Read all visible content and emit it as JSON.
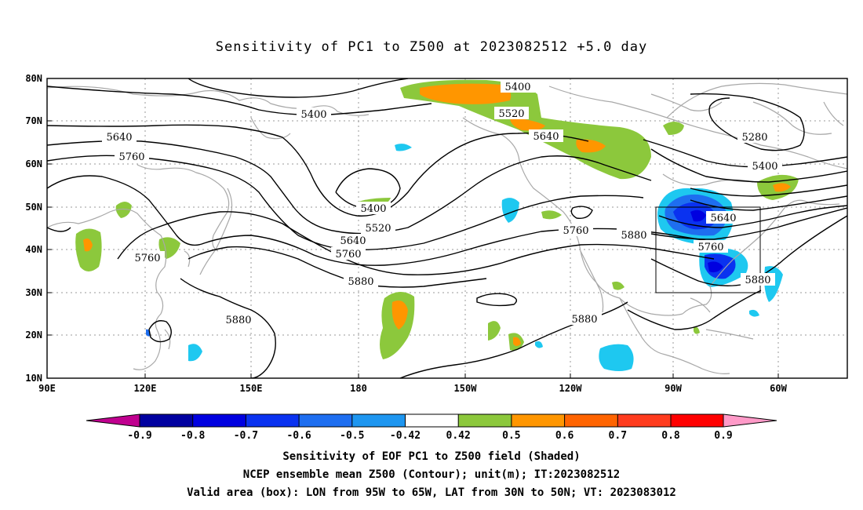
{
  "title": "Sensitivity of PC1 to Z500 at 2023082512 +5.0 day",
  "lat_ticks": [
    "80N",
    "70N",
    "60N",
    "50N",
    "40N",
    "30N",
    "20N",
    "10N"
  ],
  "lon_ticks": [
    "90E",
    "120E",
    "150E",
    "180",
    "150W",
    "120W",
    "90W",
    "60W"
  ],
  "contour_labels": {
    "c5400a": "5400",
    "c5400b": "5400",
    "c5400c": "5400",
    "c5400d": "5400",
    "c5280": "5280",
    "c5520a": "5520",
    "c5520b": "5520",
    "c5640a": "5640",
    "c5640b": "5640",
    "c5640c": "5640",
    "c5640d": "5640",
    "c5760a": "5760",
    "c5760b": "5760",
    "c5760c": "5760",
    "c5760d": "5760",
    "c5760e": "5760",
    "c5880a": "5880",
    "c5880b": "5880",
    "c5880c": "5880",
    "c5880d": "5880",
    "c5880e": "5880"
  },
  "colorbar": {
    "labels": [
      "-0.9",
      "-0.8",
      "-0.7",
      "-0.6",
      "-0.5",
      "-0.42",
      "0.42",
      "0.5",
      "0.6",
      "0.7",
      "0.8",
      "0.9"
    ],
    "colors": {
      "lt_m09": "#c0008f",
      "m09": "#0000a0",
      "m08": "#0000e0",
      "m07": "#0a32f0",
      "m06": "#1e6ef0",
      "m05": "#1e96f0",
      "m042": "#1ec8f0",
      "white": "#ffffff",
      "p042": "#8cc83c",
      "p05": "#ff9600",
      "p06": "#ff6400",
      "p07": "#ff3c1e",
      "p08": "#ff0000",
      "gt_p09": "#ff9ac8"
    }
  },
  "footer": {
    "line1": "Sensitivity of EOF PC1 to Z500 field (Shaded)",
    "line2": "NCEP ensemble mean Z500 (Contour); unit(m); IT:2023082512",
    "line3": "Valid area (box): LON from 95W to 65W, LAT from 30N to 50N; VT: 2023083012"
  }
}
